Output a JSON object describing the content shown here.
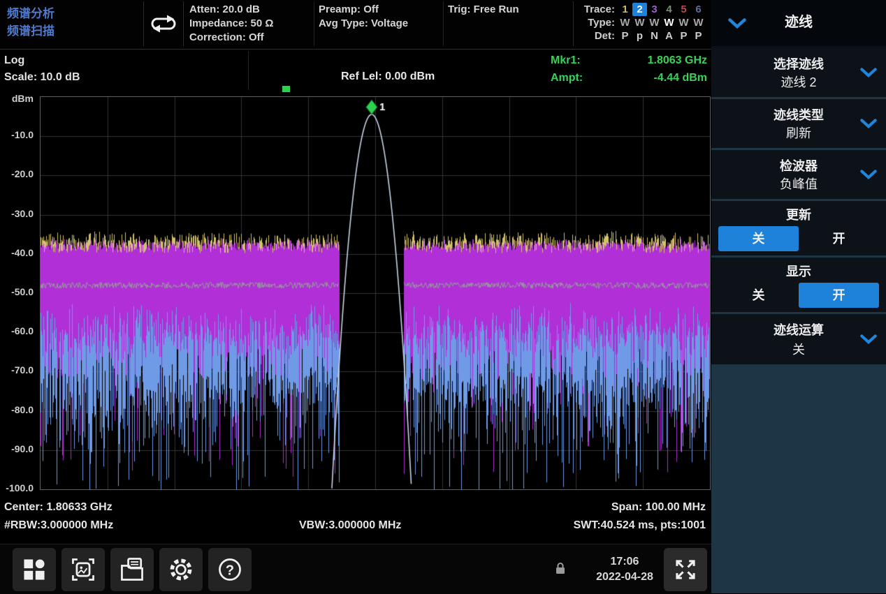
{
  "colors": {
    "accent": "#1f82da",
    "title_blue": "#4e79cc",
    "marker_green": "#2ad24e",
    "mkr_text_green": "#3ad158",
    "trace1_yellow": "#d2c26e",
    "trace2_blue": "#6e9ae6",
    "trace3_magenta": "#b02fd6",
    "trace4_green": "#8fae8f",
    "trace5_red": "#c0494f",
    "trace6_slate": "#5d6c9e",
    "peak_line": "#c9d4e4",
    "grid": "#333333",
    "sidebar_fill": "#1d3544"
  },
  "header": {
    "mode_line1": "频谱分析",
    "mode_line2": "频谱扫描",
    "atten": "Atten: 20.0 dB",
    "impedance": "Impedance: 50 Ω",
    "correction": "Correction: Off",
    "preamp": "Preamp: Off",
    "avg_type": "Avg Type: Voltage",
    "trig": "Trig: Free Run",
    "trace_table": {
      "row_labels": [
        "Trace:",
        "Type:",
        "Det:"
      ],
      "traces": [
        {
          "n": "1",
          "color": "#cdbd5e",
          "type": "W",
          "det": "P",
          "selected": false
        },
        {
          "n": "2",
          "color": "#ffffff",
          "type": "W",
          "det": "p",
          "selected": true
        },
        {
          "n": "3",
          "color": "#a55ad6",
          "type": "W",
          "det": "N",
          "selected": false
        },
        {
          "n": "4",
          "color": "#74936f",
          "type": "W",
          "det": "A",
          "selected": false,
          "type_bold": true
        },
        {
          "n": "5",
          "color": "#c0494f",
          "type": "W",
          "det": "P",
          "selected": false
        },
        {
          "n": "6",
          "color": "#5d6c9e",
          "type": "W",
          "det": "P",
          "selected": false
        }
      ]
    }
  },
  "infobar": {
    "log": "Log",
    "scale": "Scale: 10.0 dB",
    "ref_level": "Ref Lel: 0.00 dBm",
    "mkr_label": "Mkr1:",
    "mkr_value": "1.8063 GHz",
    "ampt_label": "Ampt:",
    "ampt_value": "-4.44 dBm"
  },
  "freqbar": {
    "center": "Center: 1.80633 GHz",
    "span": "Span: 100.00 MHz",
    "rbw": "#RBW:3.000000 MHz",
    "vbw": "VBW:3.000000 MHz",
    "swt": "SWT:40.524 ms, pts:1001"
  },
  "toolbar": {
    "time": "17:06",
    "date": "2022-04-28",
    "icons": [
      "apps-icon",
      "screenshot-icon",
      "file-manager-icon",
      "settings-gear-icon",
      "help-icon",
      "lock-icon",
      "fullscreen-expand-icon"
    ]
  },
  "sidebar": {
    "title": "迹线",
    "items": [
      {
        "kind": "dropdown",
        "line1": "选择迹线",
        "line2": "迹线 2"
      },
      {
        "kind": "dropdown",
        "line1": "迹线类型",
        "line2": "刷新"
      },
      {
        "kind": "dropdown",
        "line1": "检波器",
        "line2": "负峰值"
      },
      {
        "kind": "toggle",
        "label": "更新",
        "off": "关",
        "on": "开",
        "active": "off"
      },
      {
        "kind": "toggle",
        "label": "显示",
        "off": "关",
        "on": "开",
        "active": "on"
      },
      {
        "kind": "dropdown",
        "line1": "迹线运算",
        "line2": "关"
      }
    ]
  },
  "chart_data": {
    "type": "line",
    "title": "Spectrum sweep, carrier peak with noise floor",
    "x_axis": {
      "center": "1.80633 GHz",
      "span": "100.00 MHz",
      "divisions": 10
    },
    "y_axis": {
      "unit": "dBm",
      "ref_level_dbm": 0,
      "scale_db_per_div": 10,
      "min_dbm": -100,
      "divisions": 10,
      "ticks": [
        "dBm",
        "-10.0",
        "-20.0",
        "-30.0",
        "-40.0",
        "-50.0",
        "-60.0",
        "-70.0",
        "-80.0",
        "-90.0",
        "-100.0"
      ]
    },
    "grid": true,
    "marker": {
      "id": "1",
      "freq": "1.8063 GHz",
      "amplitude_dbm": -4.44,
      "rel_x": 0.4947
    },
    "peak": {
      "top_dbm": -4.44,
      "center_rel": 0.4947,
      "rolloff_db_per_relx2": 27000
    },
    "noise": {
      "band_top_dbm": -37.6,
      "band_top_jitter_db": 1.4,
      "band_bottom_dbm": -64,
      "band_bottom_spread_db": 8,
      "avg_line_dbm": -48,
      "notch_halfwidth_rel": 0.048,
      "deep_spike_min_dbm": -100
    },
    "series": [
      {
        "n": "1",
        "color_key": "trace1_yellow",
        "type": "W",
        "detector": "P",
        "role": "positive-peak noise fringe"
      },
      {
        "n": "2",
        "color_key": "trace2_blue",
        "type": "W",
        "detector": "p",
        "role": "negative-peak spikes",
        "selected": true
      },
      {
        "n": "3",
        "color_key": "trace3_magenta",
        "type": "W",
        "detector": "N",
        "role": "noise band fill"
      },
      {
        "n": "4",
        "color_key": "trace4_green",
        "type": "W",
        "detector": "A",
        "role": "average line"
      },
      {
        "n": "5",
        "color_key": "trace5_red",
        "type": "W",
        "detector": "P",
        "role": "not visible"
      },
      {
        "n": "6",
        "color_key": "trace6_slate",
        "type": "W",
        "detector": "P",
        "role": "not visible"
      }
    ]
  }
}
